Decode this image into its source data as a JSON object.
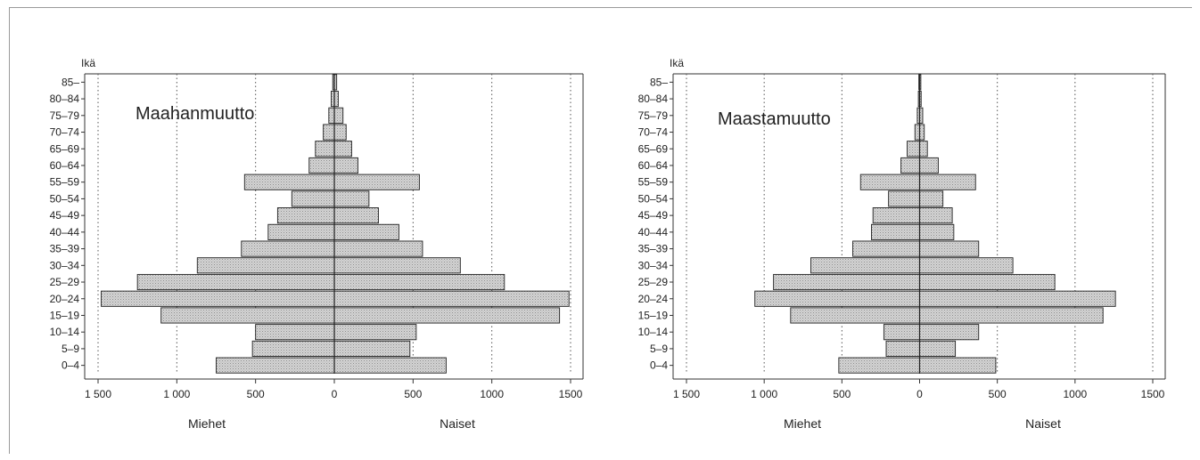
{
  "chart_data": [
    {
      "type": "bar",
      "orientation": "horizontal-population-pyramid",
      "title": "Maahanmuutto",
      "ylabel": "Ikä",
      "left_label": "Miehet",
      "right_label": "Naiset",
      "categories": [
        "0–4",
        "5–9",
        "10–14",
        "15–19",
        "20–24",
        "25–29",
        "30–34",
        "35–39",
        "40–44",
        "45–49",
        "50–54",
        "55–59",
        "60–64",
        "65–69",
        "70–74",
        "75–79",
        "80–84",
        "85–"
      ],
      "series": [
        {
          "name": "Miehet",
          "values": [
            750,
            520,
            500,
            1100,
            1480,
            1250,
            870,
            590,
            420,
            360,
            270,
            570,
            160,
            120,
            70,
            35,
            20,
            10
          ]
        },
        {
          "name": "Naiset",
          "values": [
            710,
            480,
            520,
            1430,
            1490,
            1080,
            800,
            560,
            410,
            280,
            220,
            540,
            150,
            110,
            75,
            55,
            25,
            15
          ]
        }
      ],
      "xlim": [
        -1500,
        1500
      ],
      "xticks": [
        -1500,
        -1000,
        -500,
        0,
        500,
        1000,
        1500
      ],
      "xtick_labels": [
        "1 500",
        "1 000",
        "500",
        "0",
        "500",
        "1000",
        "1500"
      ],
      "grid": "vertical dotted"
    },
    {
      "type": "bar",
      "orientation": "horizontal-population-pyramid",
      "title": "Maastamuutto",
      "ylabel": "Ikä",
      "left_label": "Miehet",
      "right_label": "Naiset",
      "categories": [
        "0–4",
        "5–9",
        "10–14",
        "15–19",
        "20–24",
        "25–29",
        "30–34",
        "35–39",
        "40–44",
        "45–49",
        "50–54",
        "55–59",
        "60–64",
        "65–69",
        "70–74",
        "75–79",
        "80–84",
        "85–"
      ],
      "series": [
        {
          "name": "Miehet",
          "values": [
            520,
            215,
            230,
            830,
            1060,
            940,
            700,
            430,
            310,
            300,
            200,
            380,
            120,
            80,
            30,
            15,
            8,
            5
          ]
        },
        {
          "name": "Naiset",
          "values": [
            490,
            230,
            380,
            1180,
            1260,
            870,
            600,
            380,
            220,
            210,
            150,
            360,
            120,
            50,
            30,
            20,
            10,
            8
          ]
        }
      ],
      "xlim": [
        -1500,
        1500
      ],
      "xticks": [
        -1500,
        -1000,
        -500,
        0,
        500,
        1000,
        1500
      ],
      "xtick_labels": [
        "1 500",
        "1 000",
        "500",
        "0",
        "500",
        "1000",
        "1500"
      ],
      "grid": "vertical dotted"
    }
  ]
}
